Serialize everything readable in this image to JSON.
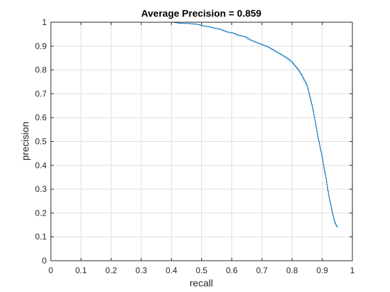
{
  "chart_data": {
    "type": "line",
    "title": "Average Precision = 0.859",
    "xlabel": "recall",
    "ylabel": "precision",
    "xlim": [
      0,
      1
    ],
    "ylim": [
      0,
      1
    ],
    "xticks": [
      0,
      0.1,
      0.2,
      0.3,
      0.4,
      0.5,
      0.6,
      0.7,
      0.8,
      0.9,
      1
    ],
    "xtick_labels": [
      "0",
      "0.1",
      "0.2",
      "0.3",
      "0.4",
      "0.5",
      "0.6",
      "0.7",
      "0.8",
      "0.9",
      "1"
    ],
    "yticks": [
      0,
      0.1,
      0.2,
      0.3,
      0.4,
      0.5,
      0.6,
      0.7,
      0.8,
      0.9,
      1
    ],
    "ytick_labels": [
      "0",
      "0.1",
      "0.2",
      "0.3",
      "0.4",
      "0.5",
      "0.6",
      "0.7",
      "0.8",
      "0.9",
      "1"
    ],
    "grid": true,
    "box": true,
    "series": [
      {
        "color": "#0072bd",
        "x": [
          0.0,
          0.05,
          0.1,
          0.2,
          0.3,
          0.4,
          0.43,
          0.45,
          0.47,
          0.49,
          0.5,
          0.52,
          0.54,
          0.56,
          0.58,
          0.6,
          0.62,
          0.64,
          0.66,
          0.68,
          0.7,
          0.72,
          0.74,
          0.76,
          0.78,
          0.8,
          0.81,
          0.82,
          0.83,
          0.84,
          0.85,
          0.855,
          0.86,
          0.865,
          0.87,
          0.875,
          0.88,
          0.885,
          0.89,
          0.895,
          0.9,
          0.905,
          0.91,
          0.915,
          0.92,
          0.925,
          0.93,
          0.935,
          0.94,
          0.945,
          0.95
        ],
        "y": [
          1.0,
          1.0,
          1.0,
          1.0,
          1.0,
          1.0,
          0.995,
          0.995,
          0.993,
          0.99,
          0.985,
          0.982,
          0.975,
          0.97,
          0.96,
          0.955,
          0.945,
          0.94,
          0.925,
          0.915,
          0.905,
          0.895,
          0.88,
          0.865,
          0.85,
          0.83,
          0.815,
          0.8,
          0.78,
          0.755,
          0.73,
          0.705,
          0.68,
          0.655,
          0.625,
          0.59,
          0.555,
          0.52,
          0.49,
          0.46,
          0.43,
          0.39,
          0.36,
          0.32,
          0.28,
          0.25,
          0.22,
          0.19,
          0.165,
          0.15,
          0.14
        ]
      }
    ]
  }
}
